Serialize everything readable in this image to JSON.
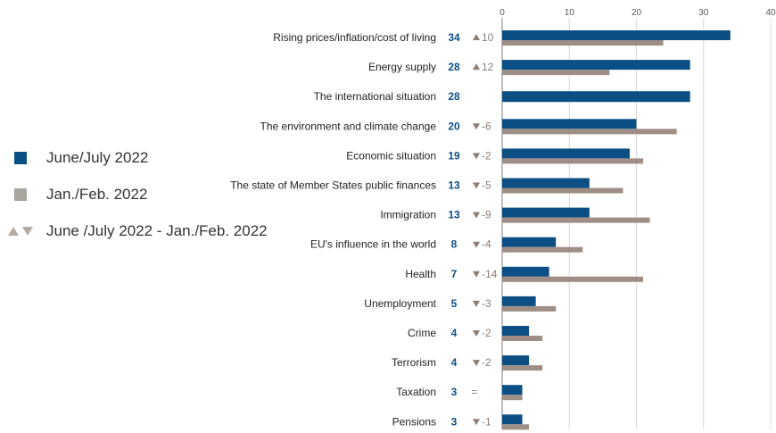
{
  "colors": {
    "current": "#0b4f84",
    "previous": "#9e8e86",
    "change": "#8a7e76",
    "legend_prev": "#a8a49e",
    "arrow_light": "#b5aaa3",
    "grid": "#d9d9d9",
    "axis": "#7f7f7f"
  },
  "legend": {
    "current_label": "June/July 2022",
    "previous_label": "Jan./Feb. 2022",
    "change_label": "June /July 2022 - Jan./Feb. 2022"
  },
  "chart_data": {
    "type": "bar",
    "orientation": "horizontal",
    "xlim": [
      0,
      40
    ],
    "xticks": [
      0,
      10,
      20,
      30,
      40
    ],
    "grid": true,
    "legend_position": "left",
    "categories": [
      "Rising prices/inflation/cost of living",
      "Energy supply",
      "The international situation",
      "The environment and climate change",
      "Economic situation",
      "The state of Member States public finances",
      "Immigration",
      "EU's influence in the world",
      "Health",
      "Unemployment",
      "Crime",
      "Terrorism",
      "Taxation",
      "Pensions"
    ],
    "series": [
      {
        "name": "June/July 2022",
        "values": [
          34,
          28,
          28,
          20,
          19,
          13,
          13,
          8,
          7,
          5,
          4,
          4,
          3,
          3
        ]
      },
      {
        "name": "Jan./Feb. 2022",
        "values": [
          24,
          16,
          null,
          26,
          21,
          18,
          22,
          12,
          21,
          8,
          6,
          6,
          3,
          4
        ]
      }
    ],
    "value_labels": [
      "34",
      "28",
      "28",
      "20",
      "19",
      "13",
      "13",
      "8",
      "7",
      "5",
      "4",
      "4",
      "3",
      "3"
    ],
    "changes": [
      {
        "dir": "up",
        "text": "10"
      },
      {
        "dir": "up",
        "text": "12"
      },
      {
        "dir": "none",
        "text": ""
      },
      {
        "dir": "down",
        "text": "-6"
      },
      {
        "dir": "down",
        "text": "-2"
      },
      {
        "dir": "down",
        "text": "-5"
      },
      {
        "dir": "down",
        "text": "-9"
      },
      {
        "dir": "down",
        "text": "-4"
      },
      {
        "dir": "down",
        "text": "-14"
      },
      {
        "dir": "down",
        "text": "-3"
      },
      {
        "dir": "down",
        "text": "-2"
      },
      {
        "dir": "down",
        "text": "-2"
      },
      {
        "dir": "eq",
        "text": "="
      },
      {
        "dir": "down",
        "text": "-1"
      }
    ]
  }
}
